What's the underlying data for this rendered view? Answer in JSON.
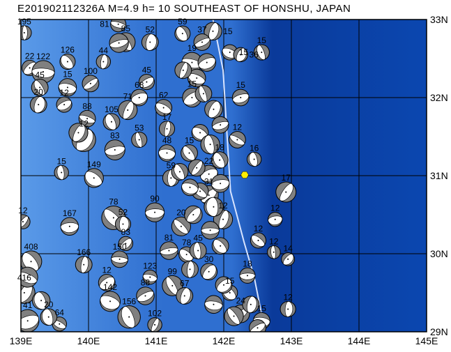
{
  "title": "E201902112326A M=4.9 h= 10 SOUTHEAST OF HONSHU, JAPAN",
  "map": {
    "lon_range": [
      139,
      145
    ],
    "lat_range": [
      29,
      33
    ],
    "lon_labels": [
      "139E",
      "140E",
      "141E",
      "142E",
      "143E",
      "144E",
      "145E"
    ],
    "lat_labels": [
      "33N",
      "32N",
      "31N",
      "30N",
      "29N"
    ],
    "colors": {
      "shallow": "#5a9ae8",
      "mid": "#2f6fd0",
      "deep": "#0a3a9a",
      "ball_fill": "#808080",
      "epicenter": "#ffee00",
      "trench": "#d8e4ff"
    },
    "epicenter": {
      "lon": 142.31,
      "lat": 31.01
    },
    "trench": [
      [
        141.84,
        33.0
      ],
      [
        141.99,
        32.35
      ],
      [
        142.05,
        31.5
      ],
      [
        142.1,
        30.8
      ],
      [
        142.3,
        30.15
      ],
      [
        142.45,
        29.7
      ],
      [
        142.6,
        29.05
      ]
    ],
    "events": [
      {
        "lon": 139.05,
        "lat": 32.83,
        "depth": "195",
        "mag": 4.8
      },
      {
        "lon": 139.13,
        "lat": 32.38,
        "depth": "22",
        "mag": 4.9
      },
      {
        "lon": 139.33,
        "lat": 32.33,
        "depth": "122",
        "mag": 5.5
      },
      {
        "lon": 139.69,
        "lat": 32.46,
        "depth": "126",
        "mag": 4.9
      },
      {
        "lon": 140.22,
        "lat": 32.46,
        "depth": "44",
        "mag": 4.8
      },
      {
        "lon": 140.03,
        "lat": 32.18,
        "depth": "100",
        "mag": 5.0
      },
      {
        "lon": 139.69,
        "lat": 32.13,
        "depth": "15",
        "mag": 5.1
      },
      {
        "lon": 139.28,
        "lat": 32.13,
        "depth": "45",
        "mag": 5.0
      },
      {
        "lon": 139.26,
        "lat": 31.91,
        "depth": "20",
        "mag": 5.0
      },
      {
        "lon": 139.64,
        "lat": 31.91,
        "depth": "12",
        "mag": 4.9
      },
      {
        "lon": 139.98,
        "lat": 31.73,
        "depth": "88",
        "mag": 5.0
      },
      {
        "lon": 140.34,
        "lat": 31.69,
        "depth": "105",
        "mag": 5.0
      },
      {
        "lon": 140.58,
        "lat": 31.84,
        "depth": "71",
        "mag": 5.2
      },
      {
        "lon": 140.75,
        "lat": 32.0,
        "depth": "68",
        "mag": 5.0
      },
      {
        "lon": 141.11,
        "lat": 31.87,
        "depth": "62",
        "mag": 5.0
      },
      {
        "lon": 140.75,
        "lat": 31.46,
        "depth": "53",
        "mag": 4.9
      },
      {
        "lon": 139.93,
        "lat": 31.46,
        "depth": "12",
        "mag": 5.6
      },
      {
        "lon": 140.39,
        "lat": 31.33,
        "depth": "83",
        "mag": 5.3
      },
      {
        "lon": 140.08,
        "lat": 30.97,
        "depth": "149",
        "mag": 5.2
      },
      {
        "lon": 139.6,
        "lat": 31.04,
        "depth": "15",
        "mag": 4.8
      },
      {
        "lon": 139.03,
        "lat": 30.41,
        "depth": "12",
        "mag": 4.8
      },
      {
        "lon": 139.72,
        "lat": 30.35,
        "depth": "167",
        "mag": 5.1
      },
      {
        "lon": 140.37,
        "lat": 30.46,
        "depth": "78",
        "mag": 5.6
      },
      {
        "lon": 140.51,
        "lat": 30.38,
        "depth": "52",
        "mag": 4.9
      },
      {
        "lon": 140.55,
        "lat": 30.13,
        "depth": "83",
        "mag": 4.8
      },
      {
        "lon": 140.46,
        "lat": 29.93,
        "depth": "150",
        "mag": 5.0
      },
      {
        "lon": 139.15,
        "lat": 29.9,
        "depth": "408",
        "mag": 5.4
      },
      {
        "lon": 139.93,
        "lat": 29.86,
        "depth": "166",
        "mag": 5.0
      },
      {
        "lon": 140.27,
        "lat": 29.63,
        "depth": "12",
        "mag": 5.0
      },
      {
        "lon": 140.91,
        "lat": 29.7,
        "depth": "123",
        "mag": 4.8
      },
      {
        "lon": 141.24,
        "lat": 29.59,
        "depth": "99",
        "mag": 5.3
      },
      {
        "lon": 141.42,
        "lat": 29.46,
        "depth": "67",
        "mag": 5.0
      },
      {
        "lon": 140.84,
        "lat": 29.46,
        "depth": "88",
        "mag": 5.1
      },
      {
        "lon": 140.32,
        "lat": 29.39,
        "depth": "142",
        "mag": 5.3
      },
      {
        "lon": 140.6,
        "lat": 29.19,
        "depth": "156",
        "mag": 5.5
      },
      {
        "lon": 140.98,
        "lat": 29.09,
        "depth": "102",
        "mag": 4.8
      },
      {
        "lon": 139.1,
        "lat": 29.14,
        "depth": "41",
        "mag": 5.5
      },
      {
        "lon": 139.57,
        "lat": 29.1,
        "depth": "64",
        "mag": 4.8
      },
      {
        "lon": 139.41,
        "lat": 29.19,
        "depth": "20",
        "mag": 5.0
      },
      {
        "lon": 139.05,
        "lat": 29.5,
        "depth": "416",
        "mag": 5.4
      },
      {
        "lon": 141.19,
        "lat": 30.04,
        "depth": "81",
        "mag": 5.1
      },
      {
        "lon": 141.45,
        "lat": 29.99,
        "depth": "78",
        "mag": 4.9
      },
      {
        "lon": 141.62,
        "lat": 30.04,
        "depth": "45",
        "mag": 5.0
      },
      {
        "lon": 141.78,
        "lat": 29.77,
        "depth": "30",
        "mag": 5.0
      },
      {
        "lon": 140.98,
        "lat": 30.53,
        "depth": "90",
        "mag": 5.2
      },
      {
        "lon": 141.37,
        "lat": 30.35,
        "depth": "20",
        "mag": 5.2
      },
      {
        "lon": 141.22,
        "lat": 30.97,
        "depth": "59",
        "mag": 5.0
      },
      {
        "lon": 141.78,
        "lat": 30.75,
        "depth": "31",
        "mag": 5.2
      },
      {
        "lon": 141.16,
        "lat": 31.29,
        "depth": "48",
        "mag": 5.0
      },
      {
        "lon": 141.49,
        "lat": 31.29,
        "depth": "15",
        "mag": 5.0
      },
      {
        "lon": 141.16,
        "lat": 31.6,
        "depth": "17",
        "mag": 4.9
      },
      {
        "lon": 141.53,
        "lat": 32.0,
        "depth": "15",
        "mag": 5.2
      },
      {
        "lon": 141.53,
        "lat": 32.45,
        "depth": "19",
        "mag": 5.3
      },
      {
        "lon": 141.39,
        "lat": 32.82,
        "depth": "59",
        "mag": 4.9
      },
      {
        "lon": 141.84,
        "lat": 32.85,
        "depth": "15",
        "mag": 5.1
      },
      {
        "lon": 141.68,
        "lat": 32.71,
        "depth": "37",
        "mag": 5.0
      },
      {
        "lon": 142.09,
        "lat": 32.58,
        "depth": "15",
        "mag": 4.9
      },
      {
        "lon": 142.56,
        "lat": 32.58,
        "depth": "15",
        "mag": 4.9
      },
      {
        "lon": 142.25,
        "lat": 32.55,
        "depth": "36",
        "mag": 4.8
      },
      {
        "lon": 142.25,
        "lat": 32.0,
        "depth": "15",
        "mag": 5.0
      },
      {
        "lon": 142.2,
        "lat": 31.46,
        "depth": "12",
        "mag": 5.0
      },
      {
        "lon": 142.45,
        "lat": 31.21,
        "depth": "16",
        "mag": 4.8
      },
      {
        "lon": 142.92,
        "lat": 30.79,
        "depth": "17",
        "mag": 5.3
      },
      {
        "lon": 142.76,
        "lat": 30.44,
        "depth": "12",
        "mag": 4.8
      },
      {
        "lon": 142.51,
        "lat": 30.17,
        "depth": "12",
        "mag": 4.9
      },
      {
        "lon": 142.74,
        "lat": 30.02,
        "depth": "12",
        "mag": 4.7
      },
      {
        "lon": 142.95,
        "lat": 29.93,
        "depth": "14",
        "mag": 4.7
      },
      {
        "lon": 142.35,
        "lat": 29.72,
        "depth": "18",
        "mag": 4.9
      },
      {
        "lon": 142.09,
        "lat": 29.5,
        "depth": "15",
        "mag": 4.9
      },
      {
        "lon": 142.95,
        "lat": 29.29,
        "depth": "12",
        "mag": 4.9
      },
      {
        "lon": 142.25,
        "lat": 29.23,
        "depth": "24",
        "mag": 5.1
      },
      {
        "lon": 142.56,
        "lat": 29.14,
        "depth": "15",
        "mag": 5.0
      },
      {
        "lon": 140.55,
        "lat": 32.71,
        "depth": "85",
        "mag": 5.2
      },
      {
        "lon": 140.91,
        "lat": 32.71,
        "depth": "52",
        "mag": 5.0
      },
      {
        "lon": 140.86,
        "lat": 32.2,
        "depth": "45",
        "mag": 4.9
      },
      {
        "lon": 140.44,
        "lat": 32.94,
        "depth": "81",
        "mag": 4.9
      },
      {
        "lon": 141.94,
        "lat": 31.2,
        "depth": "18",
        "mag": 5.0
      },
      {
        "lon": 141.99,
        "lat": 30.44,
        "depth": "12",
        "mag": 5.2
      },
      {
        "lon": 141.78,
        "lat": 31.02,
        "depth": "22",
        "mag": 5.1
      },
      {
        "lon": 141.6,
        "lat": 32.25,
        "depth": "",
        "mag": 5.1
      },
      {
        "lon": 141.7,
        "lat": 32.05,
        "depth": "",
        "mag": 5.0
      },
      {
        "lon": 141.85,
        "lat": 31.85,
        "depth": "",
        "mag": 5.1
      },
      {
        "lon": 141.95,
        "lat": 31.65,
        "depth": "",
        "mag": 5.0
      },
      {
        "lon": 141.65,
        "lat": 31.55,
        "depth": "",
        "mag": 5.0
      },
      {
        "lon": 141.8,
        "lat": 31.4,
        "depth": "",
        "mag": 5.2
      },
      {
        "lon": 141.6,
        "lat": 31.1,
        "depth": "",
        "mag": 5.0
      },
      {
        "lon": 141.95,
        "lat": 30.9,
        "depth": "",
        "mag": 5.1
      },
      {
        "lon": 141.65,
        "lat": 30.8,
        "depth": "",
        "mag": 5.0
      },
      {
        "lon": 141.85,
        "lat": 30.6,
        "depth": "",
        "mag": 5.2
      },
      {
        "lon": 141.55,
        "lat": 30.5,
        "depth": "",
        "mag": 5.1
      },
      {
        "lon": 141.8,
        "lat": 30.3,
        "depth": "",
        "mag": 5.1
      },
      {
        "lon": 141.95,
        "lat": 30.1,
        "depth": "",
        "mag": 5.0
      },
      {
        "lon": 141.5,
        "lat": 29.8,
        "depth": "",
        "mag": 5.0
      },
      {
        "lon": 142.0,
        "lat": 29.6,
        "depth": "",
        "mag": 5.0
      },
      {
        "lon": 141.85,
        "lat": 29.35,
        "depth": "",
        "mag": 5.1
      },
      {
        "lon": 142.15,
        "lat": 29.2,
        "depth": "",
        "mag": 5.2
      },
      {
        "lon": 142.4,
        "lat": 29.35,
        "depth": "",
        "mag": 5.0
      },
      {
        "lon": 142.5,
        "lat": 29.05,
        "depth": "",
        "mag": 5.0
      },
      {
        "lon": 141.5,
        "lat": 30.85,
        "depth": "",
        "mag": 5.0
      },
      {
        "lon": 141.35,
        "lat": 31.05,
        "depth": "",
        "mag": 5.0
      },
      {
        "lon": 141.4,
        "lat": 32.35,
        "depth": "",
        "mag": 5.0
      },
      {
        "lon": 141.75,
        "lat": 32.45,
        "depth": "",
        "mag": 5.1
      },
      {
        "lon": 139.1,
        "lat": 29.7,
        "depth": "",
        "mag": 5.3
      },
      {
        "lon": 139.3,
        "lat": 29.4,
        "depth": "",
        "mag": 5.1
      },
      {
        "lon": 139.85,
        "lat": 31.55,
        "depth": "",
        "mag": 5.2
      },
      {
        "lon": 140.45,
        "lat": 32.7,
        "depth": "",
        "mag": 5.2
      }
    ]
  }
}
